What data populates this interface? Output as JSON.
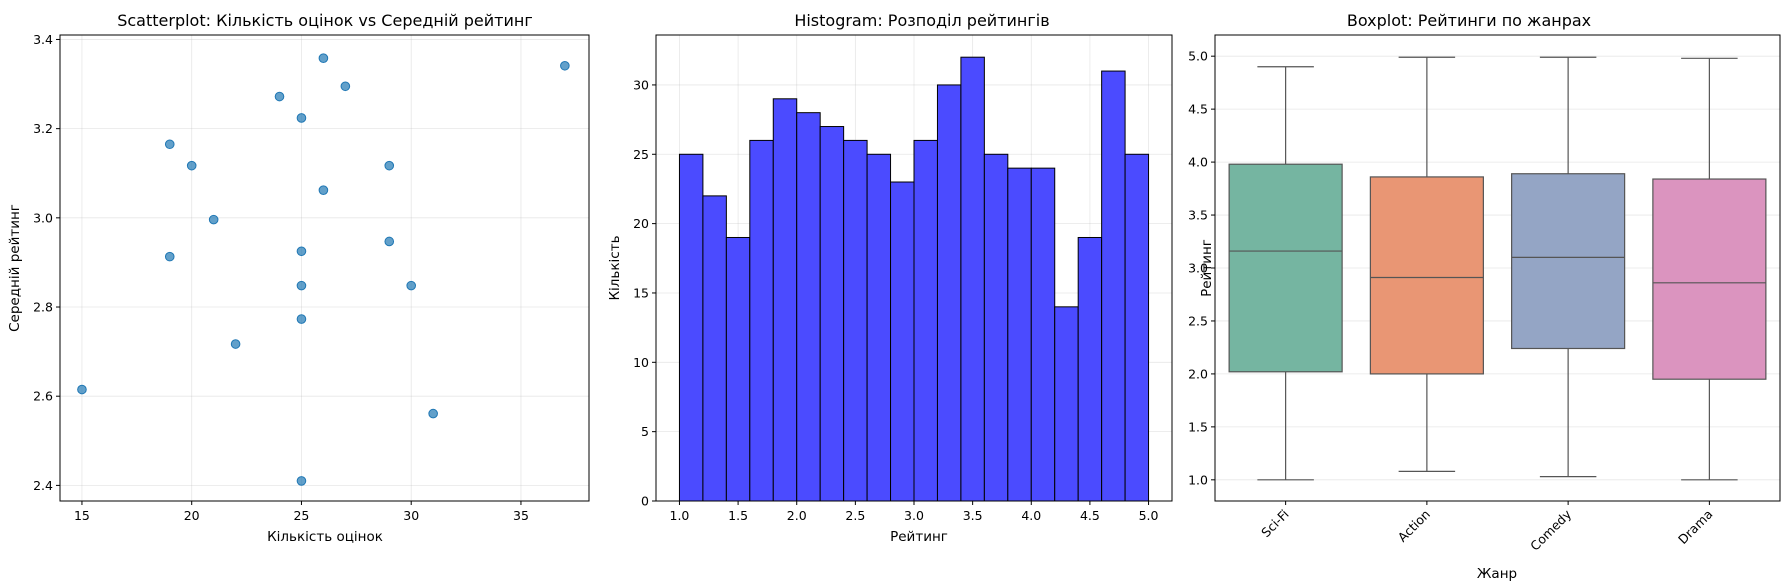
{
  "chart_data": [
    {
      "type": "scatter",
      "title": "Scatterplot: Кількість оцінок vs Середній рейтинг",
      "xlabel": "Кількість оцінок",
      "ylabel": "Середній рейтинг",
      "xlim": [
        14,
        38.1
      ],
      "ylim": [
        2.365,
        3.41
      ],
      "xticks": [
        "15",
        "20",
        "25",
        "30",
        "35"
      ],
      "xtick_values": [
        15,
        20,
        25,
        30,
        35
      ],
      "yticks": [
        "2.4",
        "2.6",
        "2.8",
        "3.0",
        "3.2",
        "3.4"
      ],
      "ytick_values": [
        2.4,
        2.6,
        2.8,
        3.0,
        3.2,
        3.4
      ],
      "grid": true,
      "color": "#1f77b4",
      "points": [
        {
          "x": 15,
          "y": 2.615
        },
        {
          "x": 19,
          "y": 3.165
        },
        {
          "x": 19,
          "y": 2.913
        },
        {
          "x": 20,
          "y": 3.117
        },
        {
          "x": 21,
          "y": 2.996
        },
        {
          "x": 22,
          "y": 2.717
        },
        {
          "x": 24,
          "y": 3.272
        },
        {
          "x": 25,
          "y": 3.224
        },
        {
          "x": 25,
          "y": 2.925
        },
        {
          "x": 25,
          "y": 2.848
        },
        {
          "x": 25,
          "y": 2.773
        },
        {
          "x": 25,
          "y": 2.41
        },
        {
          "x": 26,
          "y": 3.358
        },
        {
          "x": 26,
          "y": 3.062
        },
        {
          "x": 27,
          "y": 3.295
        },
        {
          "x": 29,
          "y": 3.117
        },
        {
          "x": 29,
          "y": 2.947
        },
        {
          "x": 30,
          "y": 2.848
        },
        {
          "x": 31,
          "y": 2.561
        },
        {
          "x": 37,
          "y": 3.341
        }
      ]
    },
    {
      "type": "bar",
      "subtype": "histogram",
      "title": "Histogram: Розподіл рейтингів",
      "xlabel": "Рейтинг",
      "ylabel": "Кількість",
      "xlim": [
        0.8,
        5.2
      ],
      "ylim": [
        0,
        33.6
      ],
      "xticks": [
        "1.0",
        "1.5",
        "2.0",
        "2.5",
        "3.0",
        "3.5",
        "4.0",
        "4.5",
        "5.0"
      ],
      "xtick_values": [
        1.0,
        1.5,
        2.0,
        2.5,
        3.0,
        3.5,
        4.0,
        4.5,
        5.0
      ],
      "yticks": [
        "0",
        "5",
        "10",
        "15",
        "20",
        "25",
        "30"
      ],
      "ytick_values": [
        0,
        5,
        10,
        15,
        20,
        25,
        30
      ],
      "grid": true,
      "color": "#4b4bff",
      "edge_color": "#000000",
      "bin_edges": [
        1.0,
        1.2,
        1.4,
        1.6,
        1.8,
        2.0,
        2.2,
        2.4,
        2.6,
        2.8,
        3.0,
        3.2,
        3.4,
        3.6,
        3.8,
        4.0,
        4.2,
        4.4,
        4.6,
        4.8,
        5.0
      ],
      "values": [
        25,
        22,
        19,
        26,
        29,
        28,
        27,
        26,
        25,
        23,
        26,
        30,
        32,
        25,
        24,
        24,
        14,
        19,
        31,
        25
      ]
    },
    {
      "type": "boxplot",
      "title": "Boxplot: Рейтинги по жанрах",
      "xlabel": "Жанр",
      "ylabel": "Рейтинг",
      "ylim": [
        0.8,
        5.2
      ],
      "yticks": [
        "1.0",
        "1.5",
        "2.0",
        "2.5",
        "3.0",
        "3.5",
        "4.0",
        "4.5",
        "5.0"
      ],
      "ytick_values": [
        1.0,
        1.5,
        2.0,
        2.5,
        3.0,
        3.5,
        4.0,
        4.5,
        5.0
      ],
      "grid": true,
      "categories": [
        "Sci-Fi",
        "Action",
        "Comedy",
        "Drama"
      ],
      "colors": [
        "#75b5a1",
        "#e99674",
        "#94a5c5",
        "#db94bf"
      ],
      "boxes": [
        {
          "min": 1.0,
          "q1": 2.02,
          "median": 3.16,
          "q3": 3.98,
          "max": 4.9
        },
        {
          "min": 1.08,
          "q1": 2.0,
          "median": 2.91,
          "q3": 3.86,
          "max": 4.99
        },
        {
          "min": 1.03,
          "q1": 2.24,
          "median": 3.1,
          "q3": 3.89,
          "max": 4.99
        },
        {
          "min": 1.0,
          "q1": 1.95,
          "median": 2.86,
          "q3": 3.84,
          "max": 4.98
        }
      ]
    }
  ]
}
